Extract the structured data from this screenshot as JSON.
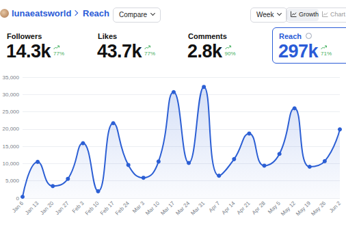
{
  "header": {
    "account": "lunaeatsworld",
    "page": "Reach",
    "buttons": [
      "Compare",
      "Week"
    ],
    "view_toggle": [
      "Growth",
      "Chart"
    ]
  },
  "stats": [
    {
      "label": "Followers",
      "value": "14.3k",
      "change": "77%"
    },
    {
      "label": "Likes",
      "value": "43.7k",
      "change": "77%"
    },
    {
      "label": "Comments",
      "value": "2.8k",
      "change": "90%"
    },
    {
      "label": "Reach",
      "value": "297k",
      "change": "71%"
    }
  ],
  "chart_data": {
    "type": "line",
    "categories": [
      "Jan 6",
      "Jan 13",
      "Jan 20",
      "Jan 27",
      "Feb 3",
      "Feb 10",
      "Feb 17",
      "Feb 24",
      "Mar 3",
      "Mar 10",
      "Mar 17",
      "Mar 24",
      "Mar 31",
      "Apr 7",
      "Apr 14",
      "Apr 21",
      "Apr 28",
      "May 5",
      "May 12",
      "May 19",
      "May 26",
      "Jun 2"
    ],
    "values": [
      400,
      10500,
      3500,
      5600,
      15900,
      2000,
      21700,
      9600,
      5900,
      10600,
      30700,
      10200,
      32200,
      6500,
      11300,
      18700,
      9400,
      12800,
      26000,
      9100,
      10700,
      19900
    ],
    "color": "#2c5fd4",
    "ylim": [
      0,
      35000
    ],
    "yticks": [
      0,
      {
        "value": 5000,
        "label": "5,000"
      },
      {
        "value": 10000,
        "label": "10,000"
      },
      {
        "value": 15000,
        "label": "15,000"
      },
      {
        "value": 20000,
        "label": "20,000"
      },
      {
        "value": 25000,
        "label": "25,000"
      },
      {
        "value": 30000,
        "label": "30,000"
      },
      {
        "value": 35000,
        "label": "35,000"
      }
    ],
    "grid": true,
    "marker": "circle"
  }
}
